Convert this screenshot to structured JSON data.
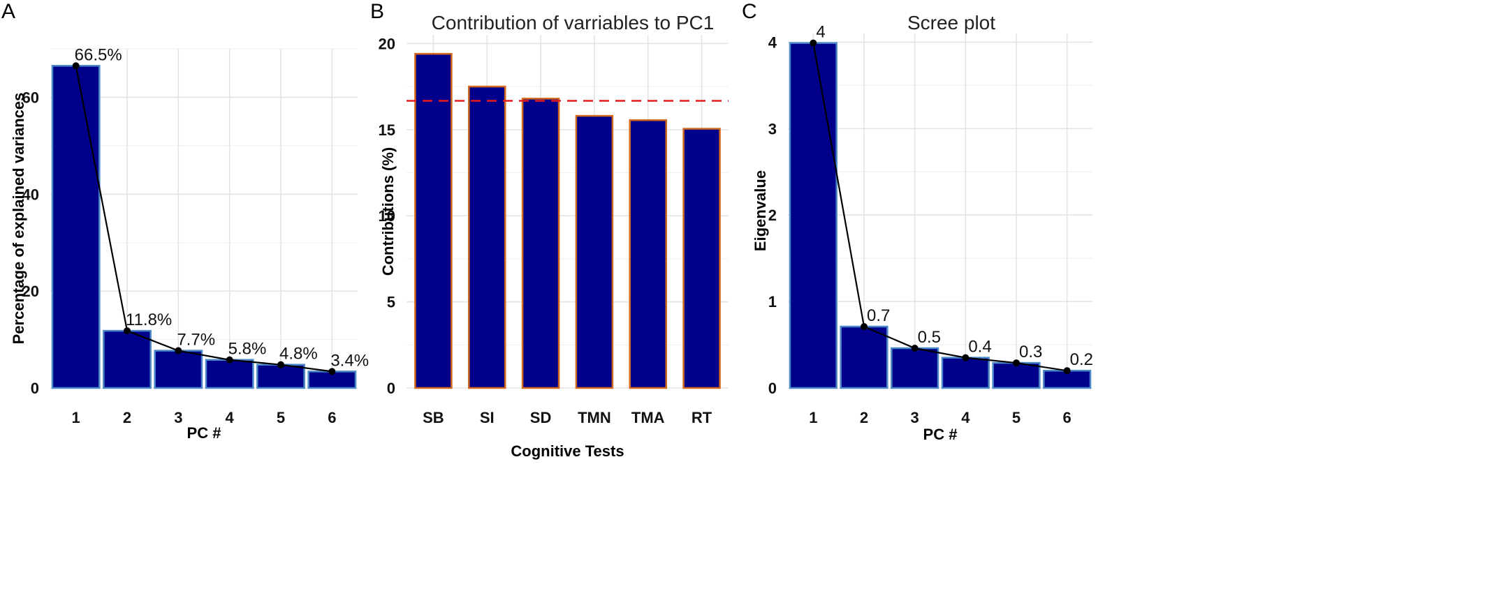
{
  "chart_data": [
    {
      "id": "A",
      "type": "bar",
      "panel_label": "A",
      "title": "",
      "xlabel": "PC #",
      "ylabel": "Percentage of explained variances",
      "categories": [
        "1",
        "2",
        "3",
        "4",
        "5",
        "6"
      ],
      "values": [
        66.5,
        11.8,
        7.7,
        5.8,
        4.8,
        3.4
      ],
      "data_labels": [
        "66.5%",
        "11.8%",
        "7.7%",
        "5.8%",
        "4.8%",
        "3.4%"
      ],
      "yticks": [
        0,
        20,
        40,
        60
      ],
      "ylim": [
        0,
        70
      ],
      "line_overlay": true,
      "bar_fill": "#00008B",
      "bar_stroke": "#4a86c8"
    },
    {
      "id": "B",
      "type": "bar",
      "panel_label": "B",
      "title": "Contribution of varriables to PC1",
      "xlabel": "Cognitive Tests",
      "ylabel": "Contributions (%)",
      "categories": [
        "SB",
        "SI",
        "SD",
        "TMN",
        "TMA",
        "RT"
      ],
      "values": [
        19.4,
        17.5,
        16.8,
        15.8,
        15.55,
        15.05
      ],
      "yticks": [
        0,
        5,
        10,
        15,
        20
      ],
      "ylim": [
        0,
        20.5
      ],
      "reference_line": 16.67,
      "reference_color": "#e41a1c",
      "bar_fill": "#00008B",
      "bar_stroke": "#d2691e"
    },
    {
      "id": "C",
      "type": "bar",
      "panel_label": "C",
      "title": "Scree plot",
      "xlabel": "PC #",
      "ylabel": "Eigenvalue",
      "categories": [
        "1",
        "2",
        "3",
        "4",
        "5",
        "6"
      ],
      "values": [
        3.99,
        0.71,
        0.46,
        0.35,
        0.29,
        0.2
      ],
      "data_labels": [
        "4",
        "0.7",
        "0.5",
        "0.4",
        "0.3",
        "0.2"
      ],
      "yticks": [
        0,
        1,
        2,
        3,
        4
      ],
      "ylim": [
        0,
        4.1
      ],
      "line_overlay": true,
      "bar_fill": "#00008B",
      "bar_stroke": "#4a86c8"
    }
  ]
}
